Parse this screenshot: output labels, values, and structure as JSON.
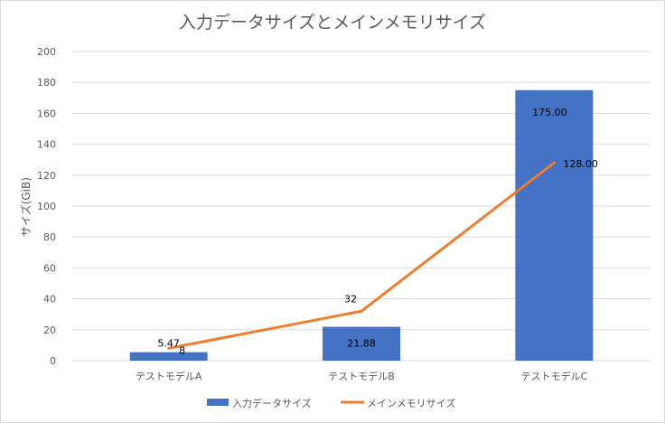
{
  "chart_data": {
    "type": "bar",
    "title": "入力データサイズとメインメモリサイズ",
    "ylabel": "サイズ(GiB)",
    "xlabel": "",
    "ylim": [
      0,
      200
    ],
    "yticks": [
      0,
      20,
      40,
      60,
      80,
      100,
      120,
      140,
      160,
      180,
      200
    ],
    "categories": [
      "テストモデルA",
      "テストモデルB",
      "テストモデルC"
    ],
    "series": [
      {
        "name": "入力データサイズ",
        "type": "bar",
        "color": "#4472c4",
        "values": [
          5.47,
          21.88,
          175.0
        ],
        "labels": [
          "5.47",
          "21.88",
          "175.00"
        ]
      },
      {
        "name": "メインメモリサイズ",
        "type": "line",
        "color": "#ed7d31",
        "values": [
          8,
          32,
          128
        ],
        "labels": [
          "8",
          "32",
          "128.00"
        ]
      }
    ],
    "grid": true,
    "legend_position": "bottom"
  }
}
